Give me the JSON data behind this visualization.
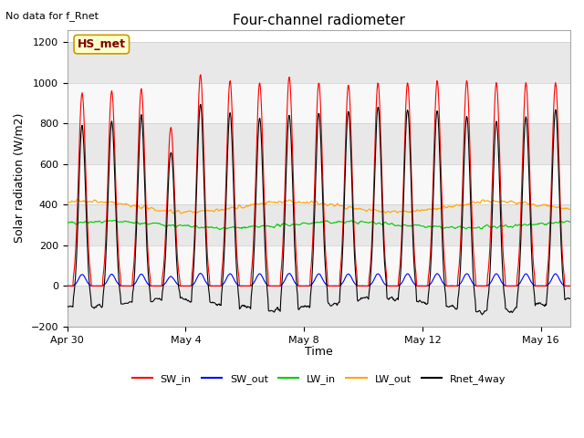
{
  "title": "Four-channel radiometer",
  "top_left_text": "No data for f_Rnet",
  "ylabel": "Solar radiation (W/m2)",
  "xlabel": "Time",
  "box_label": "HS_met",
  "ylim": [
    -200,
    1260
  ],
  "yticks": [
    -200,
    0,
    200,
    400,
    600,
    800,
    1000,
    1200
  ],
  "bg_color": "#ffffff",
  "plot_bg_color": "#ffffff",
  "legend_entries": [
    {
      "label": "SW_in",
      "color": "#ff0000"
    },
    {
      "label": "SW_out",
      "color": "#0000ff"
    },
    {
      "label": "LW_in",
      "color": "#00cc00"
    },
    {
      "label": "LW_out",
      "color": "#ffa500"
    },
    {
      "label": "Rnet_4way",
      "color": "#000000"
    }
  ],
  "x_tick_labels": [
    "Apr 30",
    "May 4",
    "May 8",
    "May 12",
    "May 16"
  ],
  "x_tick_pos": [
    0,
    4,
    8,
    12,
    16
  ],
  "n_days": 17,
  "band_colors": [
    "#e8e8e8",
    "#f8f8f8"
  ]
}
